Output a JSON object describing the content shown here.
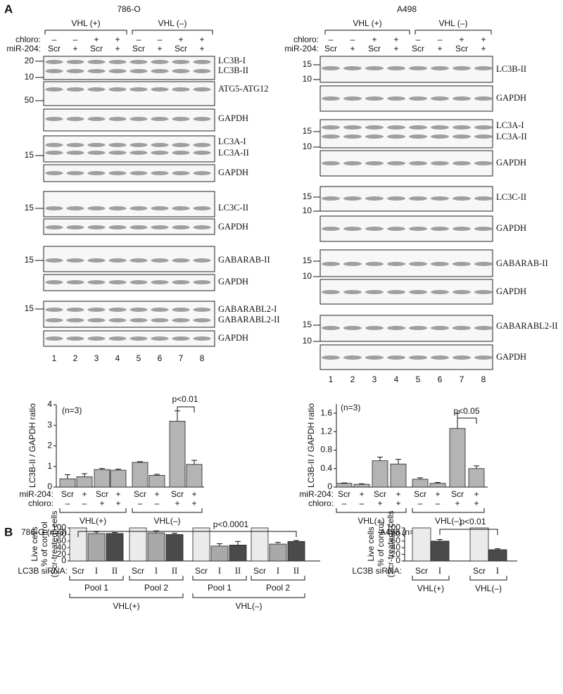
{
  "panel_labels": [
    "A",
    "B"
  ],
  "blots": [
    {
      "cell_line": "786-O",
      "groups": [
        "VHL (+)",
        "VHL (–)"
      ],
      "chloro_label": "chloro:",
      "mir_label": "miR-204:",
      "chloro": [
        "–",
        "–",
        "+",
        "+",
        "–",
        "–",
        "+",
        "+"
      ],
      "mir": [
        "Scr",
        "+",
        "Scr",
        "+",
        "Scr",
        "+",
        "Scr",
        "+"
      ],
      "panels": [
        {
          "labels": [
            "LC3B-I",
            "LC3B-II"
          ],
          "markers": [
            20,
            10
          ]
        },
        {
          "labels": [
            "ATG5-ATG12"
          ],
          "markers": [
            50
          ]
        },
        {
          "labels": [
            "GAPDH"
          ],
          "markers": []
        },
        {
          "labels": [
            "LC3A-I",
            "LC3A-II"
          ],
          "markers": [
            15
          ]
        },
        {
          "labels": [
            "GAPDH"
          ],
          "markers": []
        },
        {
          "labels": [
            "LC3C-II"
          ],
          "markers": [
            15
          ]
        },
        {
          "labels": [
            "GAPDH"
          ],
          "markers": []
        },
        {
          "labels": [
            "GABARAB-II"
          ],
          "markers": [
            15
          ]
        },
        {
          "labels": [
            "GAPDH"
          ],
          "markers": []
        },
        {
          "labels": [
            "GABARABL2-I",
            "GABARABL2-II"
          ],
          "markers": [
            15
          ]
        },
        {
          "labels": [
            "GAPDH"
          ],
          "markers": []
        }
      ],
      "lanes": [
        1,
        2,
        3,
        4,
        5,
        6,
        7,
        8
      ]
    },
    {
      "cell_line": "A498",
      "groups": [
        "VHL (+)",
        "VHL (–)"
      ],
      "chloro_label": "chloro:",
      "mir_label": "miR-204:",
      "chloro": [
        "–",
        "–",
        "+",
        "+",
        "–",
        "–",
        "+",
        "+"
      ],
      "mir": [
        "Scr",
        "+",
        "Scr",
        "+",
        "Scr",
        "+",
        "Scr",
        "+"
      ],
      "panels": [
        {
          "labels": [
            "LC3B-II"
          ],
          "markers": [
            15,
            10
          ]
        },
        {
          "labels": [
            "GAPDH"
          ],
          "markers": []
        },
        {
          "labels": [
            "LC3A-I",
            "LC3A-II"
          ],
          "markers": [
            15,
            10
          ]
        },
        {
          "labels": [
            "GAPDH"
          ],
          "markers": []
        },
        {
          "labels": [
            "LC3C-II"
          ],
          "markers": [
            15,
            10
          ]
        },
        {
          "labels": [
            "GAPDH"
          ],
          "markers": []
        },
        {
          "labels": [
            "GABARAB-II"
          ],
          "markers": [
            15,
            10
          ]
        },
        {
          "labels": [
            "GAPDH"
          ],
          "markers": []
        },
        {
          "labels": [
            "GABARABL2-II"
          ],
          "markers": [
            15,
            10
          ]
        },
        {
          "labels": [
            "GAPDH"
          ],
          "markers": []
        }
      ],
      "lanes": [
        1,
        2,
        3,
        4,
        5,
        6,
        7,
        8
      ]
    }
  ],
  "chart_data": [
    {
      "type": "bar",
      "y_label": [
        "LC3B-II / GAPDH ratio"
      ],
      "note": "(n=3)",
      "p_label": "p<0.01",
      "row_labels": [
        "miR-204:",
        "chloro:"
      ],
      "categories": [
        "Scr",
        "+",
        "Scr",
        "+",
        "Scr",
        "+",
        "Scr",
        "+"
      ],
      "chloro": [
        "–",
        "–",
        "+",
        "+",
        "–",
        "–",
        "+",
        "+"
      ],
      "groups": [
        "VHL(+)",
        "VHL(–)"
      ],
      "values": [
        0.4,
        0.5,
        0.85,
        0.82,
        1.2,
        0.57,
        3.2,
        1.1
      ],
      "errors": [
        0.2,
        0.15,
        0.05,
        0.05,
        0.03,
        0.05,
        0.5,
        0.2
      ],
      "color": "#b4b4b4",
      "ylim": [
        0,
        4
      ],
      "yticks": [
        0,
        1,
        2,
        3,
        4
      ]
    },
    {
      "type": "bar",
      "y_label": [
        "LC3B-II / GAPDH ratio"
      ],
      "note": "(n=3)",
      "p_label": "p<0.05",
      "row_labels": [
        "miR-204:",
        "chloro:"
      ],
      "categories": [
        "Scr",
        "+",
        "Scr",
        "+",
        "Scr",
        "+",
        "Scr",
        "+"
      ],
      "chloro": [
        "–",
        "–",
        "+",
        "+",
        "–",
        "–",
        "+",
        "+"
      ],
      "groups": [
        "VHL(+)",
        "VHL(–)"
      ],
      "values": [
        0.08,
        0.06,
        0.57,
        0.5,
        0.17,
        0.08,
        1.27,
        0.4
      ],
      "errors": [
        0.01,
        0.01,
        0.08,
        0.1,
        0.03,
        0.02,
        0.33,
        0.06
      ],
      "color": "#b4b4b4",
      "ylim": [
        0,
        1.8
      ],
      "yticks": [
        0,
        0.4,
        0.8,
        1.2,
        1.6
      ]
    },
    {
      "type": "bar",
      "title": "786-O (n=3)",
      "p_label": "p<0.0001",
      "y_label": [
        "Live cells",
        "% of control",
        "(Scr-treated) cells"
      ],
      "row_labels": [
        "LC3B siRNA:"
      ],
      "categories": [
        "Scr",
        "I",
        "II",
        "Scr",
        "I",
        "II",
        "Scr",
        "I",
        "II",
        "Scr",
        "I",
        "II"
      ],
      "pools": [
        "Pool 1",
        "Pool 2",
        "Pool 1",
        "Pool 2"
      ],
      "groups": [
        "VHL(+)",
        "VHL(–)"
      ],
      "values": [
        100,
        83,
        83,
        100,
        85,
        80,
        100,
        45,
        48,
        100,
        51,
        59
      ],
      "errors": [
        null,
        5,
        3,
        null,
        6,
        4,
        null,
        7,
        11,
        null,
        5,
        3
      ],
      "colors": [
        "#ebebeb",
        "#a9a9a9",
        "#4a4a4a",
        "#ebebeb",
        "#a9a9a9",
        "#4a4a4a",
        "#ebebeb",
        "#a9a9a9",
        "#4a4a4a",
        "#ebebeb",
        "#a9a9a9",
        "#4a4a4a"
      ],
      "ylim": [
        0,
        100
      ],
      "yticks": [
        0,
        20,
        40,
        60,
        80,
        100
      ]
    },
    {
      "type": "bar",
      "title": "A498 (n=3)",
      "p_label": "p<0.01",
      "y_label": [
        "Live cells",
        "% of control",
        "(Scr-treated) cells"
      ],
      "row_labels": [
        "LC3B siRNA:"
      ],
      "categories": [
        "Scr",
        "I",
        "Scr",
        "I"
      ],
      "groups": [
        "VHL(+)",
        "VHL(–)"
      ],
      "values": [
        100,
        60,
        100,
        34
      ],
      "errors": [
        null,
        5,
        null,
        3
      ],
      "colors": [
        "#ebebeb",
        "#4a4a4a",
        "#ebebeb",
        "#4a4a4a"
      ],
      "ylim": [
        0,
        100
      ],
      "yticks": [
        0,
        20,
        40,
        60,
        80,
        100
      ]
    }
  ]
}
